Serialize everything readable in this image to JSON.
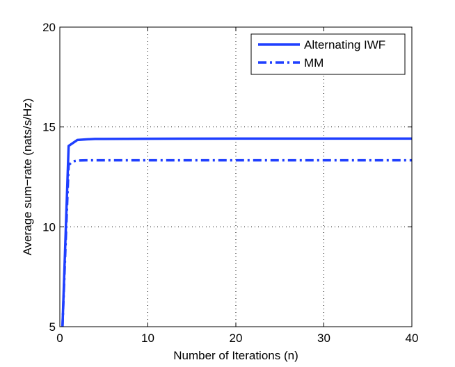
{
  "chart_data": {
    "type": "line",
    "title": "",
    "xlabel": "Number of Iterations (n)",
    "ylabel": "Average sum−rate (nats/s/Hz)",
    "xlim": [
      0,
      40
    ],
    "ylim": [
      5,
      20
    ],
    "xticks": [
      0,
      10,
      20,
      30,
      40
    ],
    "yticks": [
      5,
      10,
      15,
      20
    ],
    "xtick_labels": [
      "0",
      "10",
      "20",
      "30",
      "40"
    ],
    "ytick_labels": [
      "5",
      "10",
      "15",
      "20"
    ],
    "grid": true,
    "legend_position": "top-right",
    "series": [
      {
        "name": "Alternating IWF",
        "style": "solid",
        "color": "#1f3fff",
        "x": [
          0.3,
          1,
          2,
          3,
          4,
          5,
          10,
          20,
          30,
          40
        ],
        "y": [
          5.0,
          14.05,
          14.35,
          14.38,
          14.4,
          14.4,
          14.41,
          14.42,
          14.42,
          14.42
        ]
      },
      {
        "name": "MM",
        "style": "dashdot",
        "color": "#1f3fff",
        "x": [
          0.3,
          1,
          1.5,
          2,
          3,
          5,
          10,
          20,
          30,
          40
        ],
        "y": [
          5.0,
          13.1,
          13.28,
          13.32,
          13.33,
          13.33,
          13.33,
          13.33,
          13.33,
          13.33
        ]
      }
    ]
  }
}
